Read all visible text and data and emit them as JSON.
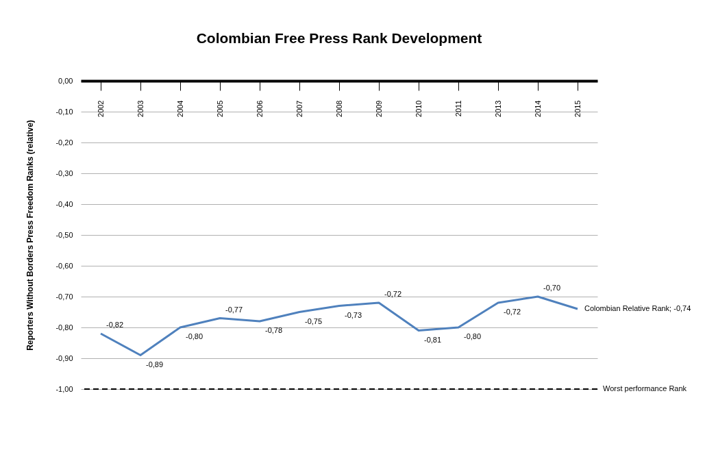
{
  "chart_data": {
    "type": "line",
    "title": "Colombian Free Press Rank Development",
    "ylabel": "Reporters Without Borders Press Freedom Ranks (relative)",
    "categories": [
      "2002",
      "2003",
      "2004",
      "2005",
      "2006",
      "2007",
      "2008",
      "2009",
      "2010",
      "2011",
      "2013",
      "2014",
      "2015"
    ],
    "series": [
      {
        "color": "#4f81bd",
        "values": [
          -0.82,
          -0.89,
          -0.8,
          -0.77,
          -0.78,
          -0.75,
          -0.73,
          -0.72,
          -0.81,
          -0.8,
          -0.72,
          -0.7,
          -0.74
        ],
        "value_labels": [
          "-0,82",
          "-0,89",
          "-0,80",
          "-0,77",
          "-0,78",
          "-0,75",
          "-0,73",
          "-0,72",
          "-0,81",
          "-0,80",
          "-0,72",
          "-0,70",
          "Colombian Relative Rank; -0,74"
        ]
      }
    ],
    "ylim": [
      -1,
      0
    ],
    "yticks": [
      {
        "value": 0,
        "label": "0,00"
      },
      {
        "value": -0.1,
        "label": "-0,10"
      },
      {
        "value": -0.2,
        "label": "-0,20"
      },
      {
        "value": -0.3,
        "label": "-0,30"
      },
      {
        "value": -0.4,
        "label": "-0,40"
      },
      {
        "value": -0.5,
        "label": "-0,50"
      },
      {
        "value": -0.6,
        "label": "-0,60"
      },
      {
        "value": -0.7,
        "label": "-0,70"
      },
      {
        "value": -0.8,
        "label": "-0,80"
      },
      {
        "value": -0.9,
        "label": "-0,90"
      },
      {
        "value": -1,
        "label": "-1,00"
      }
    ],
    "ref_lines": [
      {
        "axis": "y",
        "value": -1,
        "label": "Worst performance Rank",
        "color": "#000000",
        "line_style": "dashed"
      }
    ],
    "grid": "y",
    "line_style": "solid",
    "marker": "none"
  }
}
